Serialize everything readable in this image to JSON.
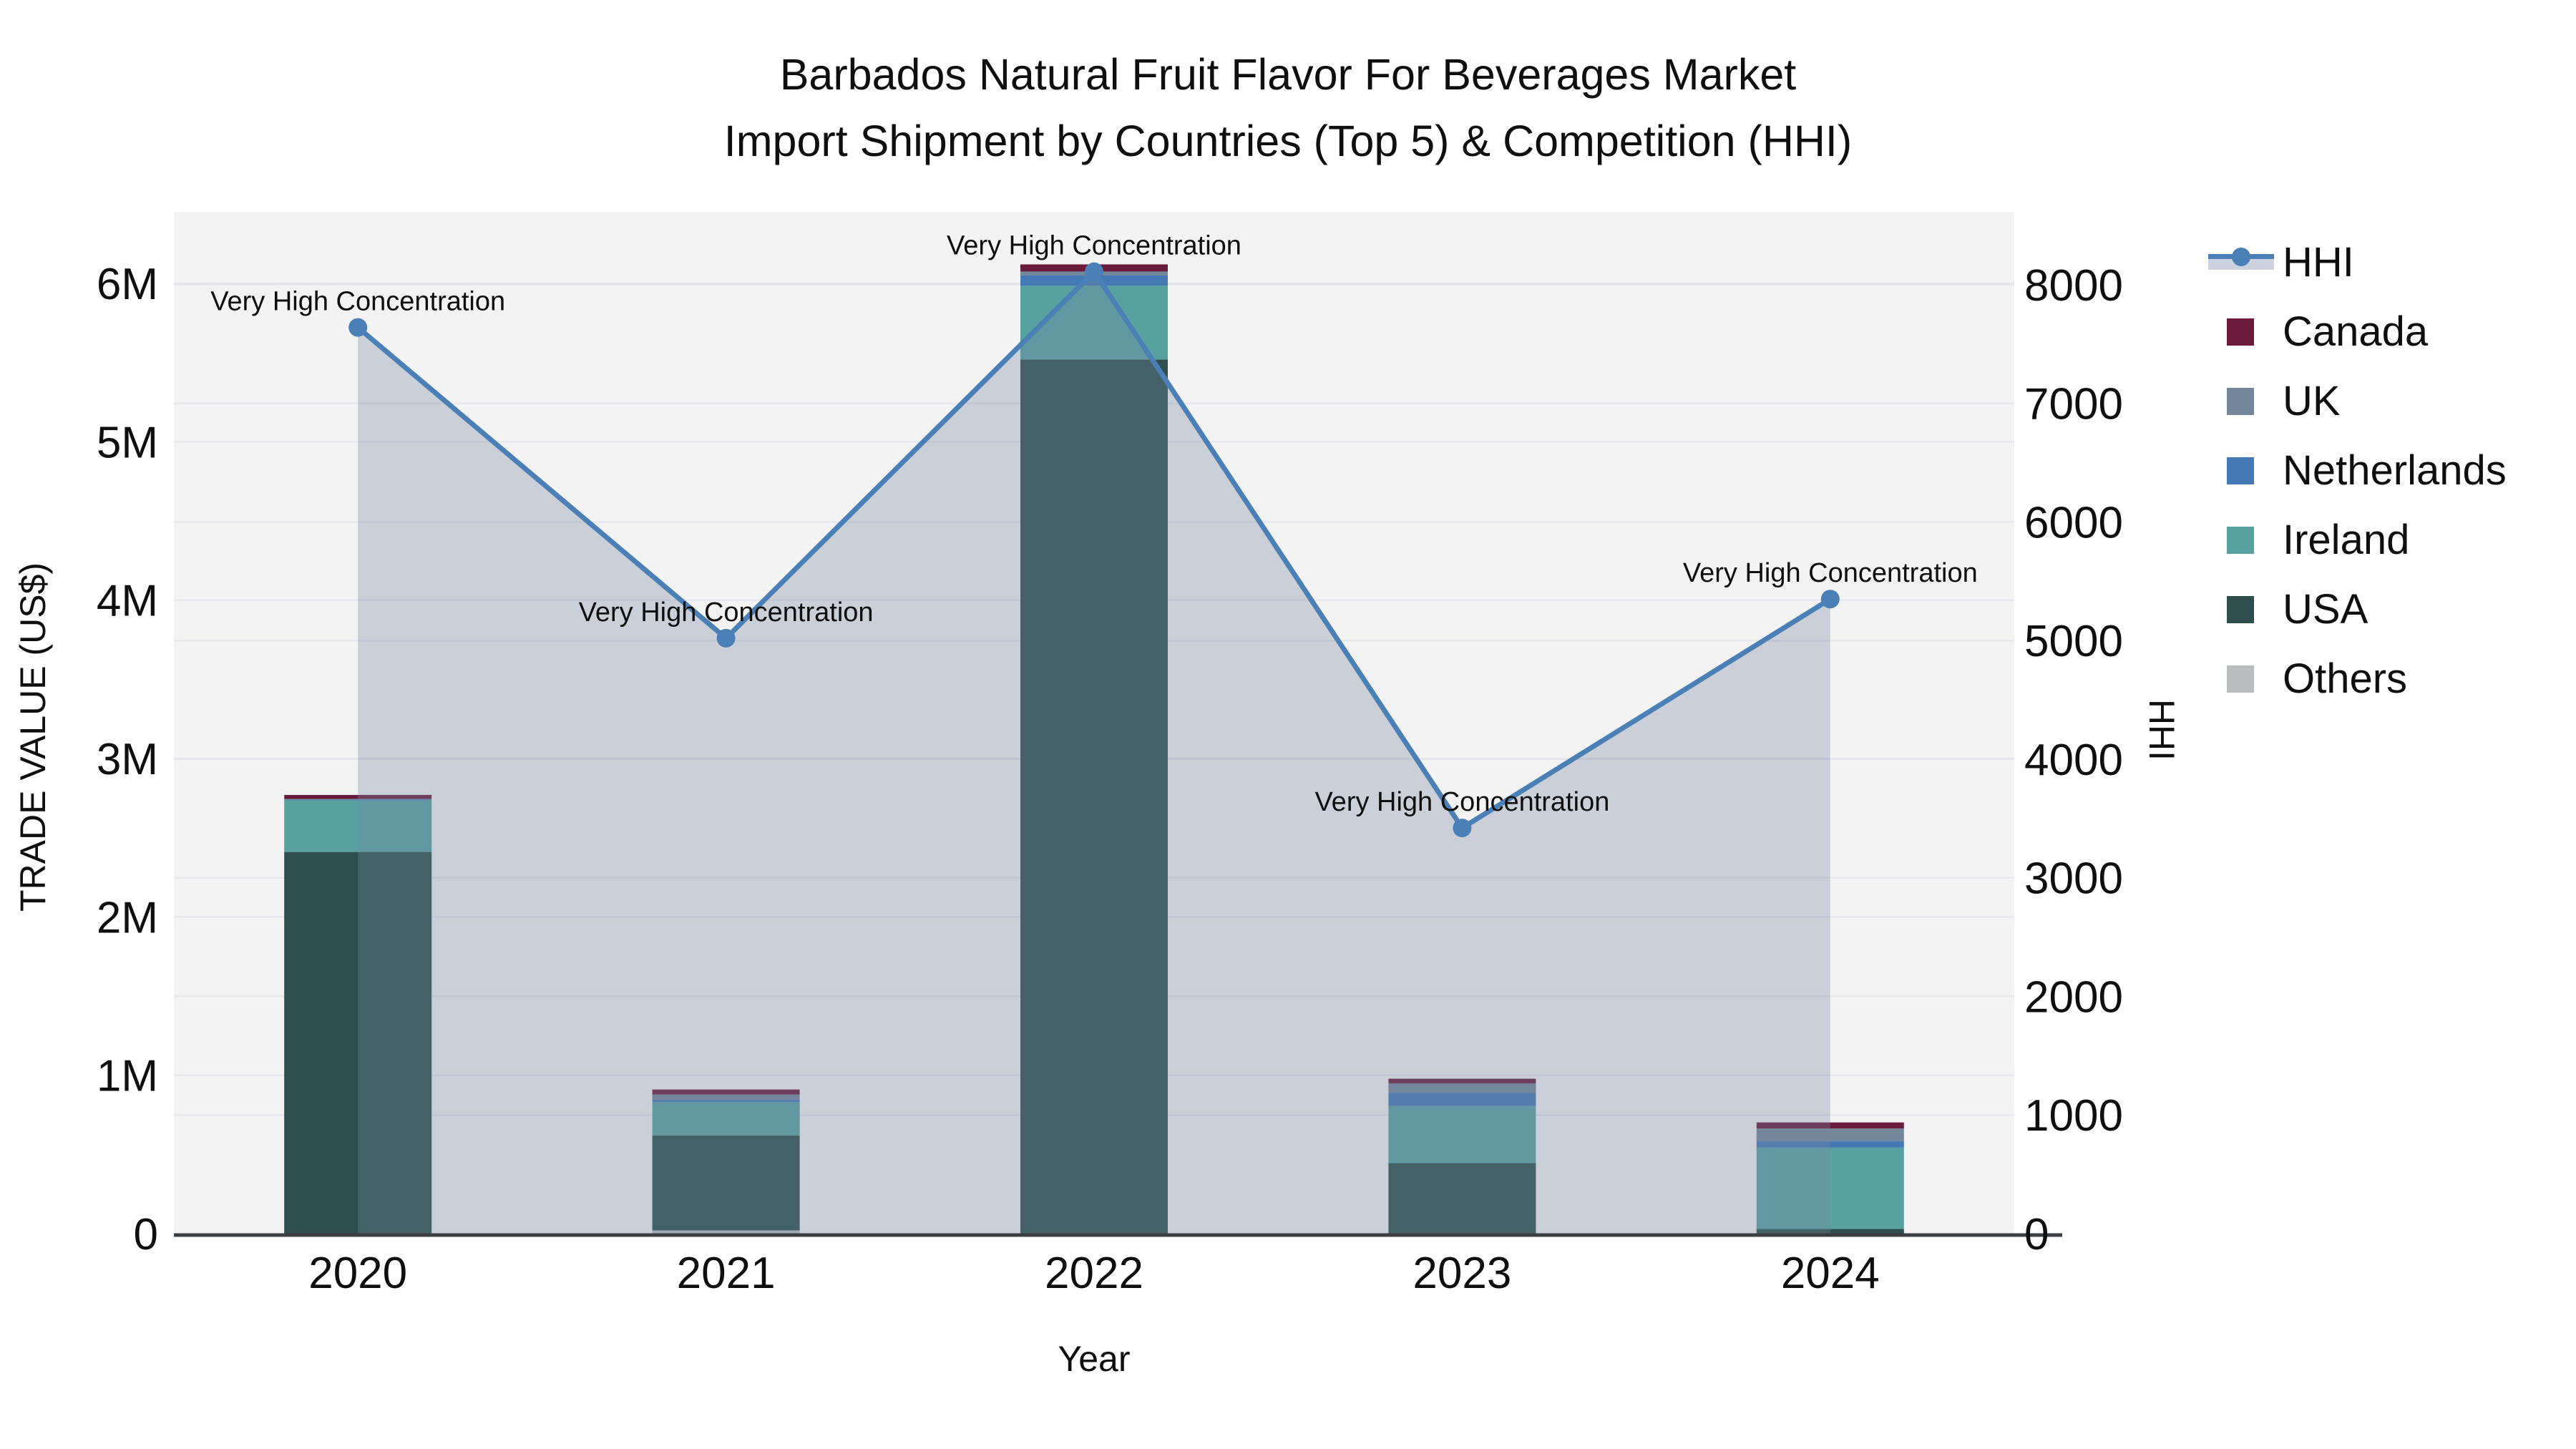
{
  "title": {
    "line1": "Barbados Natural Fruit Flavor For Beverages Market",
    "line2": "Import Shipment by Countries (Top 5) & Competition (HHI)"
  },
  "axes": {
    "x_label": "Year",
    "y_left_label": "TRADE VALUE (US$)",
    "y_right_label": "HHI",
    "y_left_ticks": [
      {
        "label": "0",
        "value": 0
      },
      {
        "label": "1M",
        "value": 1000000
      },
      {
        "label": "2M",
        "value": 2000000
      },
      {
        "label": "3M",
        "value": 3000000
      },
      {
        "label": "4M",
        "value": 4000000
      },
      {
        "label": "5M",
        "value": 5000000
      },
      {
        "label": "6M",
        "value": 6000000
      }
    ],
    "y_right_ticks": [
      0,
      1000,
      2000,
      3000,
      4000,
      5000,
      6000,
      7000,
      8000
    ],
    "y_left_max": 6452000,
    "y_right_max": 8615,
    "grid": true
  },
  "chart_data": {
    "type": "combo-stacked-bar-and-line-area",
    "categories": [
      "2020",
      "2021",
      "2022",
      "2023",
      "2024"
    ],
    "bar_value_unit": "US$",
    "bar_series_bottom_to_top": [
      {
        "name": "Others",
        "color": "#b9bdbd",
        "values": [
          0,
          20000,
          0,
          0,
          0
        ]
      },
      {
        "name": "USA",
        "color": "#2e4f4d",
        "values": [
          2410000,
          600000,
          5520000,
          445000,
          30000
        ]
      },
      {
        "name": "Ireland",
        "color": "#58a1a1",
        "values": [
          325000,
          210000,
          465000,
          360000,
          513000
        ]
      },
      {
        "name": "Netherlands",
        "color": "#4479b4",
        "values": [
          5000,
          15000,
          65000,
          83000,
          41000
        ]
      },
      {
        "name": "UK",
        "color": "#74879a",
        "values": [
          5000,
          33000,
          25000,
          60000,
          80000
        ]
      },
      {
        "name": "Canada",
        "color": "#6b1c3d",
        "values": [
          25000,
          32000,
          45000,
          30000,
          38000
        ]
      }
    ],
    "line_series": {
      "name": "HHI",
      "color": "#4a80b6",
      "area_fill": "rgba(119,134,162,0.33)",
      "values": [
        7640,
        5020,
        8110,
        3420,
        5350
      ]
    },
    "annotations": [
      {
        "category": "2020",
        "text": "Very High Concentration"
      },
      {
        "category": "2021",
        "text": "Very High Concentration"
      },
      {
        "category": "2022",
        "text": "Very High Concentration"
      },
      {
        "category": "2023",
        "text": "Very High Concentration"
      },
      {
        "category": "2024",
        "text": "Very High Concentration"
      }
    ],
    "legend_position": "right"
  },
  "legend": {
    "items": [
      {
        "id": "hhi",
        "label": "HHI",
        "type": "line",
        "color": "#4a80b6"
      },
      {
        "id": "canada",
        "label": "Canada",
        "type": "square",
        "color": "#6b1c3d"
      },
      {
        "id": "uk",
        "label": "UK",
        "type": "square",
        "color": "#74879a"
      },
      {
        "id": "netherlands",
        "label": "Netherlands",
        "type": "square",
        "color": "#4479b4"
      },
      {
        "id": "ireland",
        "label": "Ireland",
        "type": "square",
        "color": "#58a1a1"
      },
      {
        "id": "usa",
        "label": "USA",
        "type": "square",
        "color": "#2e4f4d"
      },
      {
        "id": "others",
        "label": "Others",
        "type": "square",
        "color": "#b9bdbd"
      }
    ]
  },
  "colors": {
    "plot_background": "#f3f3f4",
    "gridline": "#e4e6e9",
    "axis_line": "#3b3f42",
    "text": "#0f0f0f"
  }
}
